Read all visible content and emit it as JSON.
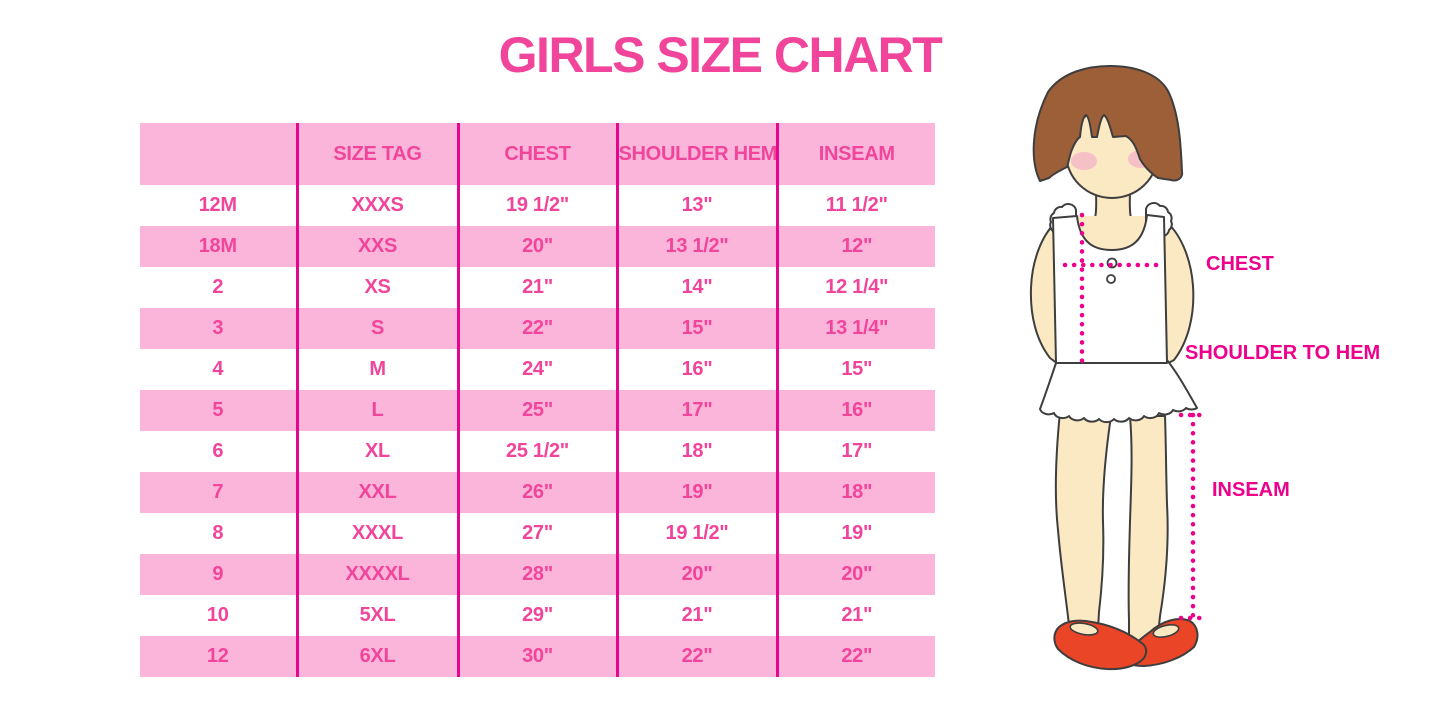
{
  "page": {
    "title": "GIRLS SIZE CHART"
  },
  "chart_data": {
    "type": "table",
    "title": "GIRLS SIZE CHART",
    "columns": [
      "",
      "SIZE TAG",
      "CHEST",
      "SHOULDER HEM",
      "INSEAM"
    ],
    "rows": [
      [
        "12M",
        "XXXS",
        "19 1/2\"",
        "13\"",
        "11 1/2\""
      ],
      [
        "18M",
        "XXS",
        "20\"",
        "13 1/2\"",
        "12\""
      ],
      [
        "2",
        "XS",
        "21\"",
        "14\"",
        "12 1/4\""
      ],
      [
        "3",
        "S",
        "22\"",
        "15\"",
        "13 1/4\""
      ],
      [
        "4",
        "M",
        "24\"",
        "16\"",
        "15\""
      ],
      [
        "5",
        "L",
        "25\"",
        "17\"",
        "16\""
      ],
      [
        "6",
        "XL",
        "25 1/2\"",
        "18\"",
        "17\""
      ],
      [
        "7",
        "XXL",
        "26\"",
        "19\"",
        "18\""
      ],
      [
        "8",
        "XXXL",
        "27\"",
        "19 1/2\"",
        "19\""
      ],
      [
        "9",
        "XXXXL",
        "28\"",
        "20\"",
        "20\""
      ],
      [
        "10",
        "5XL",
        "29\"",
        "21\"",
        "21\""
      ],
      [
        "12",
        "6XL",
        "30\"",
        "22\"",
        "22\""
      ]
    ],
    "layout": {
      "alternating_rows": "white / pink starting white",
      "grid": "vertical magenta column separators only",
      "legend_position": "none"
    }
  },
  "figure": {
    "description": "illustration of girl showing measurement locations",
    "labels": {
      "chest": "CHEST",
      "shoulder_to_hem": "SHOULDER TO HEM",
      "inseam": "INSEAM"
    }
  },
  "colors": {
    "accent_pink": "#F0459B",
    "row_pink": "#FBB5DB",
    "grid_magenta": "#E3078D",
    "label_magenta": "#EC008C",
    "hair_brown": "#9D5F38",
    "skin": "#FBE9C3",
    "blush": "#F4B8C8",
    "shoe_red": "#EA4527",
    "outline_ink": "#3E3E3E",
    "background": "#FFFFFF"
  }
}
